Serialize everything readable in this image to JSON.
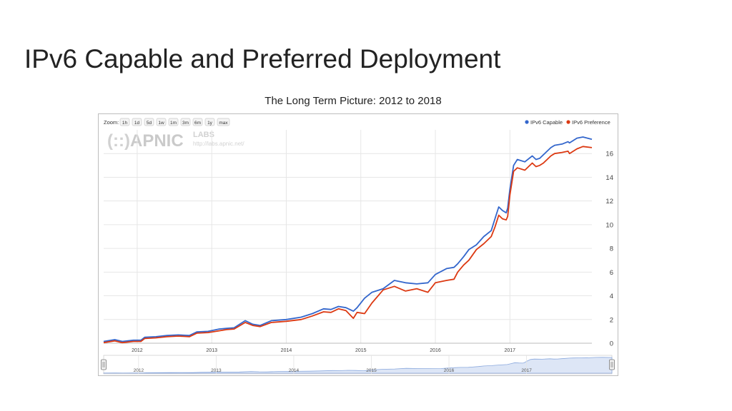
{
  "slide": {
    "title": "IPv6 Capable and Preferred Deployment",
    "subtitle": "The Long Term Picture: 2012 to 2018"
  },
  "toolbar": {
    "zoom_label": "Zoom:",
    "zoom_buttons": [
      "1h",
      "1d",
      "5d",
      "1w",
      "1m",
      "3m",
      "6m",
      "1y",
      "max"
    ]
  },
  "watermark": {
    "logo_text": "APNIC",
    "labs_text": "LABS",
    "url_text": "http://labs.apnic.net/"
  },
  "colors": {
    "capable": "#3366cc",
    "preference": "#dc3912",
    "grid": "#e6e6e6",
    "navigator_fill": "#dde6f6",
    "navigator_line": "#8aa8dd"
  },
  "chart_data": {
    "type": "line",
    "ylim": [
      0,
      18
    ],
    "yticks": [
      0,
      2,
      4,
      6,
      8,
      10,
      12,
      14,
      16
    ],
    "xlim": [
      2011.55,
      2018.1
    ],
    "xticks": [
      2012,
      2013,
      2014,
      2015,
      2016,
      2017
    ],
    "grid": true,
    "legend_position": "top-right",
    "series": [
      {
        "name": "IPv6 Capable",
        "color": "#3366cc",
        "x": [
          2011.55,
          2011.7,
          2011.8,
          2011.95,
          2012.05,
          2012.1,
          2012.25,
          2012.4,
          2012.55,
          2012.7,
          2012.8,
          2012.95,
          2013.1,
          2013.2,
          2013.3,
          2013.45,
          2013.55,
          2013.65,
          2013.8,
          2014.0,
          2014.2,
          2014.35,
          2014.5,
          2014.6,
          2014.7,
          2014.8,
          2014.9,
          2014.95,
          2015.05,
          2015.15,
          2015.3,
          2015.45,
          2015.6,
          2015.75,
          2015.9,
          2016.0,
          2016.15,
          2016.25,
          2016.3,
          2016.38,
          2016.45,
          2016.55,
          2016.65,
          2016.75,
          2016.8,
          2016.85,
          2016.9,
          2016.95,
          2016.97,
          2017.0,
          2017.05,
          2017.1,
          2017.2,
          2017.3,
          2017.35,
          2017.4,
          2017.45,
          2017.5,
          2017.55,
          2017.6,
          2017.7,
          2017.78,
          2017.8,
          2017.9,
          2017.98,
          2018.1
        ],
        "values": [
          0.15,
          0.3,
          0.15,
          0.25,
          0.25,
          0.5,
          0.55,
          0.65,
          0.7,
          0.65,
          0.95,
          1.0,
          1.2,
          1.25,
          1.3,
          1.9,
          1.6,
          1.5,
          1.9,
          2.0,
          2.2,
          2.5,
          2.9,
          2.85,
          3.1,
          3.0,
          2.7,
          3.0,
          3.8,
          4.3,
          4.6,
          5.3,
          5.1,
          5.0,
          5.1,
          5.8,
          6.3,
          6.4,
          6.7,
          7.3,
          7.9,
          8.3,
          9.0,
          9.5,
          10.5,
          11.5,
          11.2,
          11.0,
          11.4,
          13.0,
          15.0,
          15.5,
          15.3,
          15.8,
          15.5,
          15.6,
          15.9,
          16.2,
          16.5,
          16.7,
          16.8,
          17.0,
          16.9,
          17.3,
          17.4,
          17.2
        ]
      },
      {
        "name": "IPv6 Preference",
        "color": "#dc3912",
        "x": [
          2011.55,
          2011.7,
          2011.8,
          2011.95,
          2012.05,
          2012.1,
          2012.25,
          2012.4,
          2012.55,
          2012.7,
          2012.8,
          2012.95,
          2013.1,
          2013.2,
          2013.3,
          2013.45,
          2013.55,
          2013.65,
          2013.8,
          2014.0,
          2014.2,
          2014.35,
          2014.5,
          2014.6,
          2014.7,
          2014.8,
          2014.9,
          2014.95,
          2015.05,
          2015.15,
          2015.3,
          2015.45,
          2015.6,
          2015.75,
          2015.9,
          2016.0,
          2016.15,
          2016.25,
          2016.3,
          2016.38,
          2016.45,
          2016.55,
          2016.65,
          2016.75,
          2016.8,
          2016.85,
          2016.9,
          2016.95,
          2016.97,
          2017.0,
          2017.05,
          2017.1,
          2017.2,
          2017.3,
          2017.35,
          2017.4,
          2017.45,
          2017.5,
          2017.55,
          2017.6,
          2017.7,
          2017.78,
          2017.8,
          2017.9,
          2017.98,
          2018.1
        ],
        "values": [
          0.05,
          0.2,
          0.05,
          0.15,
          0.15,
          0.4,
          0.45,
          0.55,
          0.6,
          0.55,
          0.85,
          0.9,
          1.05,
          1.15,
          1.2,
          1.75,
          1.5,
          1.4,
          1.75,
          1.85,
          2.0,
          2.3,
          2.65,
          2.6,
          2.9,
          2.75,
          2.1,
          2.6,
          2.5,
          3.4,
          4.5,
          4.8,
          4.4,
          4.6,
          4.3,
          5.1,
          5.3,
          5.4,
          6.0,
          6.6,
          7.0,
          7.9,
          8.4,
          9.0,
          9.8,
          10.8,
          10.5,
          10.4,
          10.7,
          12.5,
          14.5,
          14.8,
          14.6,
          15.2,
          14.9,
          15.0,
          15.2,
          15.5,
          15.8,
          16.0,
          16.1,
          16.2,
          16.0,
          16.4,
          16.6,
          16.5
        ]
      }
    ]
  }
}
